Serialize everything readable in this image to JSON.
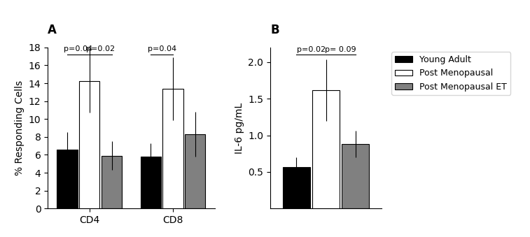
{
  "chart_data": [
    {
      "type": "bar",
      "title": "A",
      "categories": [
        "CD4",
        "CD8"
      ],
      "y_label": "% Responding Cells",
      "ylim": [
        0,
        18
      ],
      "yticks": [
        0,
        2,
        4,
        6,
        8,
        10,
        12,
        14,
        16,
        18
      ],
      "series": [
        {
          "name": "Young Adult",
          "color": "#000000",
          "values": [
            6.6,
            5.8
          ],
          "errors": [
            1.9,
            1.5
          ]
        },
        {
          "name": "Post Menopausal",
          "color": "#ffffff",
          "values": [
            14.2,
            13.4
          ],
          "errors": [
            3.5,
            3.5
          ]
        },
        {
          "name": "Post Menopausal ET",
          "color": "#808080",
          "values": [
            5.9,
            8.3
          ],
          "errors": [
            1.6,
            2.5
          ]
        }
      ],
      "annotations": [
        {
          "text": "p=0.04",
          "from": "Young Adult",
          "to": "Post Menopausal",
          "category": "CD4",
          "y": 17.2
        },
        {
          "text": "p=0.02",
          "from": "Post Menopausal",
          "to": "Post Menopausal ET",
          "category": "CD4",
          "y": 17.2
        },
        {
          "text": "p=0.04",
          "from": "Young Adult",
          "to": "Post Menopausal",
          "category": "CD8",
          "y": 17.2
        }
      ]
    },
    {
      "type": "bar",
      "title": "B",
      "categories": [
        null
      ],
      "y_label": "IL-6 pg/mL",
      "ylim": [
        0,
        2.2
      ],
      "yticks": [
        0.5,
        1.0,
        1.5,
        2.0
      ],
      "series": [
        {
          "name": "Young Adult",
          "color": "#000000",
          "values": [
            0.57
          ],
          "errors": [
            0.13
          ]
        },
        {
          "name": "Post Menopausal",
          "color": "#ffffff",
          "values": [
            1.62
          ],
          "errors": [
            0.42
          ]
        },
        {
          "name": "Post Menopausal ET",
          "color": "#808080",
          "values": [
            0.88
          ],
          "errors": [
            0.18
          ]
        }
      ],
      "annotations": [
        {
          "text": "p=0.02",
          "from": "Young Adult",
          "to": "Post Menopausal",
          "category": null,
          "y": 2.1
        },
        {
          "text": "p= 0.09",
          "from": "Post Menopausal",
          "to": "Post Menopausal ET",
          "category": null,
          "y": 2.1
        }
      ],
      "legend": "upper left"
    }
  ]
}
